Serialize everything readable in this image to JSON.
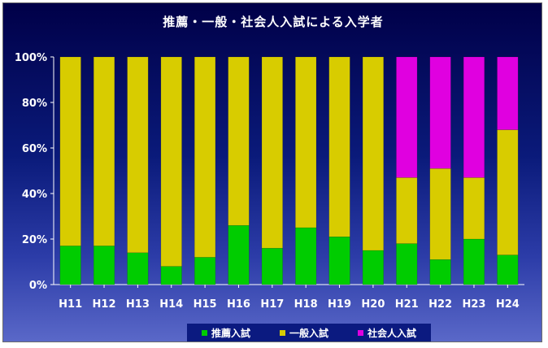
{
  "chart_data": {
    "type": "bar",
    "stacked": true,
    "percent": true,
    "title": "推薦・一般・社会人入試による入学者",
    "categories": [
      "H11",
      "H12",
      "H13",
      "H14",
      "H15",
      "H16",
      "H17",
      "H18",
      "H19",
      "H20",
      "H21",
      "H22",
      "H23",
      "H24"
    ],
    "series": [
      {
        "name": "推薦入試",
        "color": "#00cc00",
        "values": [
          17,
          17,
          14,
          8,
          12,
          26,
          16,
          25,
          21,
          15,
          18,
          11,
          20,
          13
        ]
      },
      {
        "name": "一般入試",
        "color": "#d8cc00",
        "values": [
          83,
          83,
          86,
          92,
          88,
          74,
          84,
          75,
          79,
          85,
          29,
          40,
          27,
          55
        ]
      },
      {
        "name": "社会人入試",
        "color": "#e000e0",
        "values": [
          0,
          0,
          0,
          0,
          0,
          0,
          0,
          0,
          0,
          0,
          53,
          49,
          53,
          32
        ]
      }
    ],
    "ylim": [
      0,
      100
    ],
    "yticks": [
      "0%",
      "20%",
      "40%",
      "60%",
      "80%",
      "100%"
    ],
    "xlabel": "",
    "ylabel": "",
    "grid": false,
    "legend": "bottom"
  }
}
